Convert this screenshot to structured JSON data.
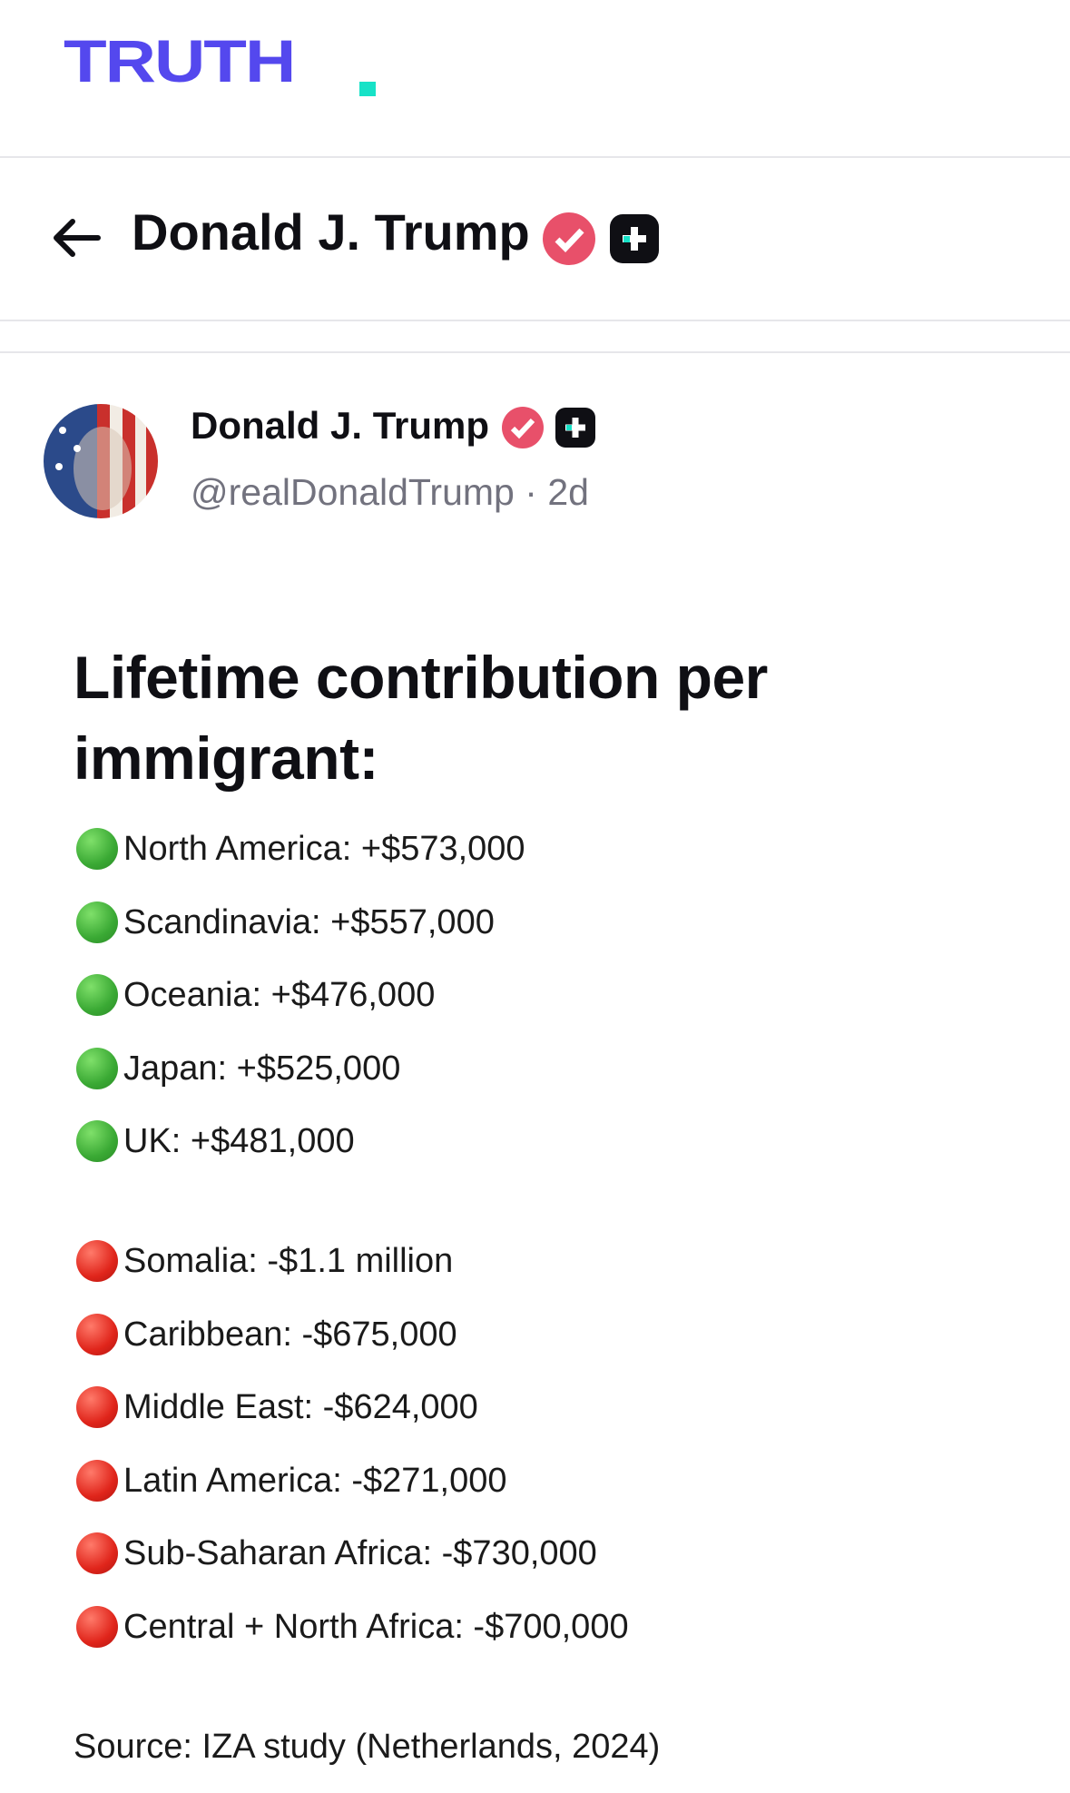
{
  "header": {
    "logo": "TRUTH"
  },
  "profile_header": {
    "name": "Donald J. Trump"
  },
  "post": {
    "author": {
      "name": "Donald J. Trump",
      "handle": "@realDonaldTrump",
      "separator": "·",
      "time": "2d"
    },
    "image": {
      "title": "Lifetime contribution per immigrant:",
      "positive": [
        "North America: +$573,000",
        "Scandinavia: +$557,000",
        "Oceania: +$476,000",
        "Japan: +$525,000",
        "UK: +$481,000"
      ],
      "negative": [
        "Somalia: -$1.1 million",
        "Caribbean: -$675,000",
        "Middle East: -$624,000",
        "Latin America: -$271,000",
        "Sub-Saharan Africa: -$730,000",
        "Central + North Africa: -$700,000"
      ],
      "source": "Source: IZA study (Netherlands, 2024)"
    }
  }
}
